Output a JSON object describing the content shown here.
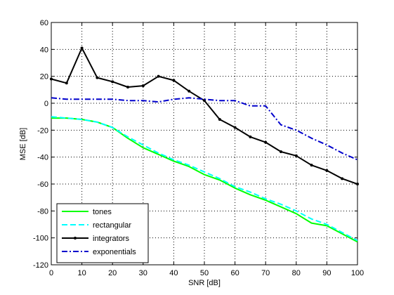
{
  "chart_data": {
    "type": "line",
    "xlabel": "SNR [dB]",
    "ylabel": "MSE [dB]",
    "xlim": [
      0,
      100
    ],
    "ylim": [
      -120,
      60
    ],
    "xticks": [
      0,
      10,
      20,
      30,
      40,
      50,
      60,
      70,
      80,
      90,
      100
    ],
    "yticks": [
      -120,
      -100,
      -80,
      -60,
      -40,
      -20,
      0,
      20,
      40,
      60
    ],
    "grid": true,
    "legend_position": "bottom-left",
    "series": [
      {
        "name": "tones",
        "color": "#00ff00",
        "style": "solid",
        "marker": "none",
        "x": [
          0,
          5,
          10,
          15,
          20,
          25,
          30,
          35,
          40,
          45,
          50,
          55,
          60,
          65,
          70,
          75,
          80,
          85,
          90,
          95,
          100
        ],
        "y": [
          -11,
          -11,
          -12,
          -14,
          -18,
          -26,
          -33,
          -38,
          -43,
          -47,
          -53,
          -57,
          -63,
          -68,
          -72,
          -77,
          -82,
          -89,
          -91,
          -97,
          -103
        ]
      },
      {
        "name": "rectangular",
        "color": "#00ffff",
        "style": "dashed",
        "marker": "none",
        "x": [
          0,
          5,
          10,
          15,
          20,
          25,
          30,
          35,
          40,
          45,
          50,
          55,
          60,
          65,
          70,
          75,
          80,
          85,
          90,
          95,
          100
        ],
        "y": [
          -10,
          -11,
          -12,
          -14,
          -18,
          -25,
          -31,
          -37,
          -42,
          -46,
          -51,
          -56,
          -62,
          -66,
          -71,
          -75,
          -80,
          -86,
          -90,
          -96,
          -102
        ]
      },
      {
        "name": "integrators",
        "color": "#000000",
        "style": "solid",
        "marker": "dot",
        "x": [
          0,
          5,
          10,
          15,
          20,
          25,
          30,
          35,
          40,
          45,
          50,
          55,
          60,
          65,
          70,
          75,
          80,
          85,
          90,
          95,
          100
        ],
        "y": [
          18,
          15,
          41,
          19,
          16,
          12,
          13,
          20,
          17,
          9,
          2,
          -12,
          -18,
          -25,
          -29,
          -36,
          -39,
          -46,
          -50,
          -56,
          -60
        ]
      },
      {
        "name": "exponentials",
        "color": "#0000cc",
        "style": "dashdot",
        "marker": "none",
        "x": [
          0,
          5,
          10,
          15,
          20,
          25,
          30,
          35,
          40,
          45,
          50,
          55,
          60,
          65,
          70,
          75,
          80,
          85,
          90,
          95,
          100
        ],
        "y": [
          4,
          3,
          3,
          3,
          3,
          2,
          2,
          1,
          3,
          4,
          3,
          2,
          2,
          -2,
          -2,
          -16,
          -20,
          -26,
          -31,
          -37,
          -42
        ]
      }
    ]
  }
}
